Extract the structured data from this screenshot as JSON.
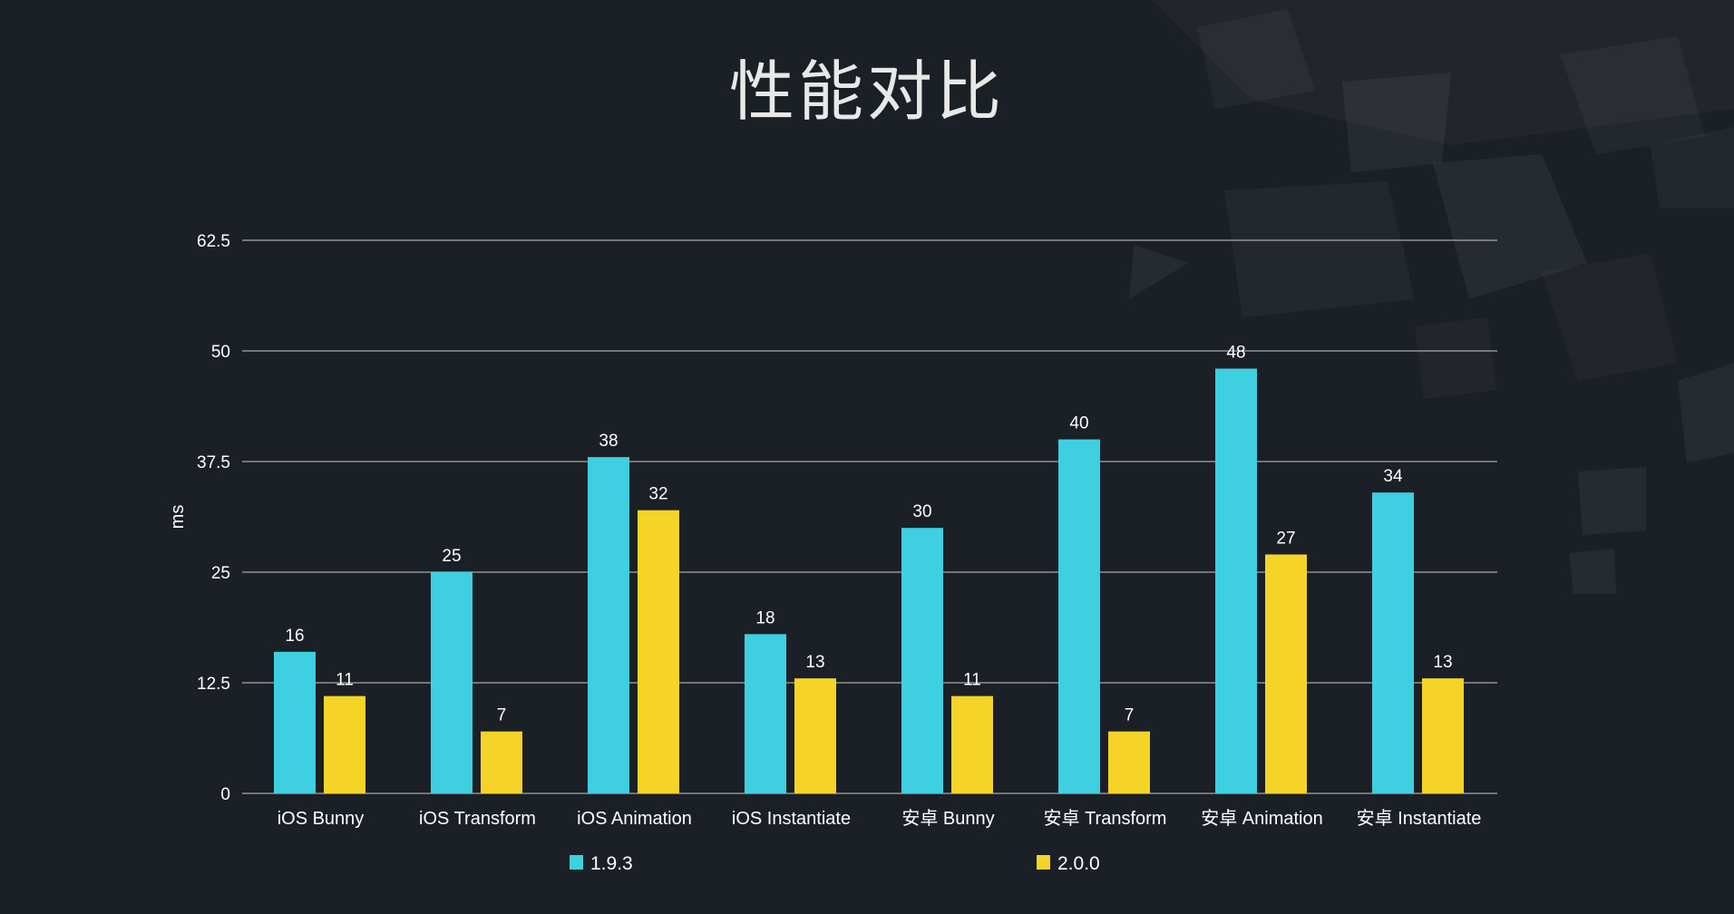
{
  "title": "性能对比",
  "chart_data": {
    "type": "bar",
    "title": "性能对比",
    "ylabel": "ms",
    "xlabel": "",
    "ylim": [
      0,
      62.5
    ],
    "yticks": [
      "0",
      "12.5",
      "25",
      "37.5",
      "50",
      "62.5"
    ],
    "grid": true,
    "legend_position": "bottom",
    "categories": [
      "iOS Bunny",
      "iOS Transform",
      "iOS Animation",
      "iOS Instantiate",
      "安卓 Bunny",
      "安卓 Transform",
      "安卓 Animation",
      "安卓 Instantiate"
    ],
    "series": [
      {
        "name": "1.9.3",
        "color": "#3ecfe0",
        "values": [
          16,
          25,
          38,
          18,
          30,
          40,
          48,
          34
        ]
      },
      {
        "name": "2.0.0",
        "color": "#f5d327",
        "values": [
          11,
          7,
          32,
          13,
          11,
          7,
          27,
          13
        ]
      }
    ]
  },
  "colors": {
    "background": "#1b1f26",
    "gridline": "#c8c8c8",
    "text": "#ffffff"
  }
}
